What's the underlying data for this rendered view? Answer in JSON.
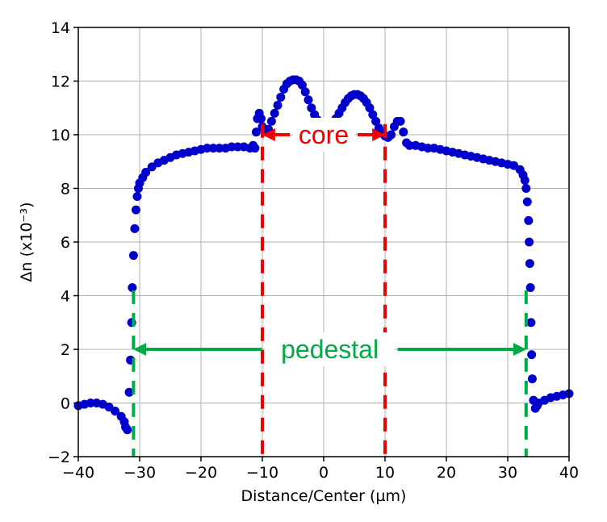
{
  "chart_data": {
    "type": "scatter",
    "title": "",
    "xlabel": "Distance/Center (µm)",
    "ylabel": "Δn (x10⁻³)",
    "xlim": [
      -40,
      40
    ],
    "ylim": [
      -2,
      14
    ],
    "xticks": [
      -40,
      -30,
      -20,
      -10,
      0,
      10,
      20,
      30,
      40
    ],
    "xtick_labels": [
      "−40",
      "−30",
      "−20",
      "−10",
      "0",
      "10",
      "20",
      "30",
      "40"
    ],
    "yticks": [
      -2,
      0,
      2,
      4,
      6,
      8,
      10,
      12,
      14
    ],
    "ytick_labels": [
      "−2",
      "0",
      "2",
      "4",
      "6",
      "8",
      "10",
      "12",
      "14"
    ],
    "grid": true,
    "marker_color": "#0000cc",
    "series": [
      {
        "name": "refractive index profile",
        "points": [
          [
            -40.0,
            -0.1
          ],
          [
            -39.0,
            -0.05
          ],
          [
            -38.0,
            0.0
          ],
          [
            -37.0,
            0.0
          ],
          [
            -36.0,
            -0.05
          ],
          [
            -35.0,
            -0.15
          ],
          [
            -34.0,
            -0.3
          ],
          [
            -33.0,
            -0.5
          ],
          [
            -32.5,
            -0.7
          ],
          [
            -32.3,
            -0.9
          ],
          [
            -32.0,
            -1.0
          ],
          [
            -31.7,
            0.4
          ],
          [
            -31.5,
            1.6
          ],
          [
            -31.3,
            3.0
          ],
          [
            -31.2,
            4.3
          ],
          [
            -31.0,
            5.5
          ],
          [
            -30.8,
            6.5
          ],
          [
            -30.6,
            7.2
          ],
          [
            -30.4,
            7.7
          ],
          [
            -30.2,
            8.0
          ],
          [
            -30.0,
            8.2
          ],
          [
            -29.5,
            8.4
          ],
          [
            -29.0,
            8.6
          ],
          [
            -28.0,
            8.8
          ],
          [
            -27.0,
            8.95
          ],
          [
            -26.0,
            9.05
          ],
          [
            -25.0,
            9.15
          ],
          [
            -24.0,
            9.25
          ],
          [
            -23.0,
            9.3
          ],
          [
            -22.0,
            9.35
          ],
          [
            -21.0,
            9.4
          ],
          [
            -20.0,
            9.45
          ],
          [
            -19.0,
            9.5
          ],
          [
            -18.0,
            9.5
          ],
          [
            -17.0,
            9.5
          ],
          [
            -16.0,
            9.5
          ],
          [
            -15.0,
            9.55
          ],
          [
            -14.0,
            9.55
          ],
          [
            -13.0,
            9.55
          ],
          [
            -12.0,
            9.5
          ],
          [
            -11.5,
            9.6
          ],
          [
            -11.2,
            9.5
          ],
          [
            -11.0,
            10.1
          ],
          [
            -10.8,
            10.6
          ],
          [
            -10.5,
            10.8
          ],
          [
            -10.2,
            10.6
          ],
          [
            -10.0,
            10.3
          ],
          [
            -9.5,
            10.15
          ],
          [
            -9.0,
            10.2
          ],
          [
            -8.5,
            10.5
          ],
          [
            -8.0,
            10.8
          ],
          [
            -7.5,
            11.1
          ],
          [
            -7.0,
            11.4
          ],
          [
            -6.5,
            11.7
          ],
          [
            -6.0,
            11.9
          ],
          [
            -5.5,
            12.0
          ],
          [
            -5.0,
            12.05
          ],
          [
            -4.5,
            12.05
          ],
          [
            -4.0,
            12.0
          ],
          [
            -3.5,
            11.85
          ],
          [
            -3.0,
            11.6
          ],
          [
            -2.5,
            11.3
          ],
          [
            -2.0,
            11.0
          ],
          [
            -1.5,
            10.75
          ],
          [
            -1.0,
            10.55
          ],
          [
            -0.5,
            10.4
          ],
          [
            0.0,
            10.3
          ],
          [
            0.5,
            10.3
          ],
          [
            1.0,
            10.35
          ],
          [
            1.5,
            10.45
          ],
          [
            2.0,
            10.6
          ],
          [
            2.5,
            10.8
          ],
          [
            3.0,
            11.0
          ],
          [
            3.5,
            11.2
          ],
          [
            4.0,
            11.35
          ],
          [
            4.5,
            11.45
          ],
          [
            5.0,
            11.5
          ],
          [
            5.5,
            11.5
          ],
          [
            6.0,
            11.45
          ],
          [
            6.5,
            11.35
          ],
          [
            7.0,
            11.2
          ],
          [
            7.5,
            11.0
          ],
          [
            8.0,
            10.75
          ],
          [
            8.5,
            10.5
          ],
          [
            9.0,
            10.25
          ],
          [
            9.5,
            10.05
          ],
          [
            10.0,
            9.95
          ],
          [
            10.5,
            9.9
          ],
          [
            11.0,
            10.0
          ],
          [
            11.5,
            10.3
          ],
          [
            12.0,
            10.5
          ],
          [
            12.5,
            10.5
          ],
          [
            13.0,
            10.1
          ],
          [
            13.5,
            9.7
          ],
          [
            14.0,
            9.6
          ],
          [
            15.0,
            9.6
          ],
          [
            16.0,
            9.55
          ],
          [
            17.0,
            9.5
          ],
          [
            18.0,
            9.5
          ],
          [
            19.0,
            9.45
          ],
          [
            20.0,
            9.4
          ],
          [
            21.0,
            9.35
          ],
          [
            22.0,
            9.3
          ],
          [
            23.0,
            9.25
          ],
          [
            24.0,
            9.2
          ],
          [
            25.0,
            9.15
          ],
          [
            26.0,
            9.1
          ],
          [
            27.0,
            9.05
          ],
          [
            28.0,
            9.0
          ],
          [
            29.0,
            8.95
          ],
          [
            30.0,
            8.9
          ],
          [
            31.0,
            8.85
          ],
          [
            32.0,
            8.7
          ],
          [
            32.5,
            8.5
          ],
          [
            32.8,
            8.3
          ],
          [
            33.0,
            8.0
          ],
          [
            33.2,
            7.5
          ],
          [
            33.4,
            6.8
          ],
          [
            33.5,
            6.0
          ],
          [
            33.6,
            5.2
          ],
          [
            33.7,
            4.3
          ],
          [
            33.8,
            3.0
          ],
          [
            33.9,
            1.8
          ],
          [
            34.0,
            0.9
          ],
          [
            34.2,
            0.1
          ],
          [
            34.5,
            -0.2
          ],
          [
            34.8,
            -0.1
          ],
          [
            35.0,
            0.0
          ],
          [
            36.0,
            0.1
          ],
          [
            37.0,
            0.2
          ],
          [
            38.0,
            0.25
          ],
          [
            39.0,
            0.3
          ],
          [
            40.0,
            0.35
          ]
        ]
      }
    ],
    "annotations": [
      {
        "label": "core",
        "color": "#ee0000",
        "x_left": -10,
        "x_right": 10,
        "arrow_y": 10.0,
        "line_ymin": -2,
        "line_ymax": 10.4
      },
      {
        "label": "pedestal",
        "color": "#00aa44",
        "x_left": -31,
        "x_right": 33,
        "arrow_y": 2.0,
        "line_ymin": -2,
        "line_ymax": 4.2
      }
    ]
  }
}
